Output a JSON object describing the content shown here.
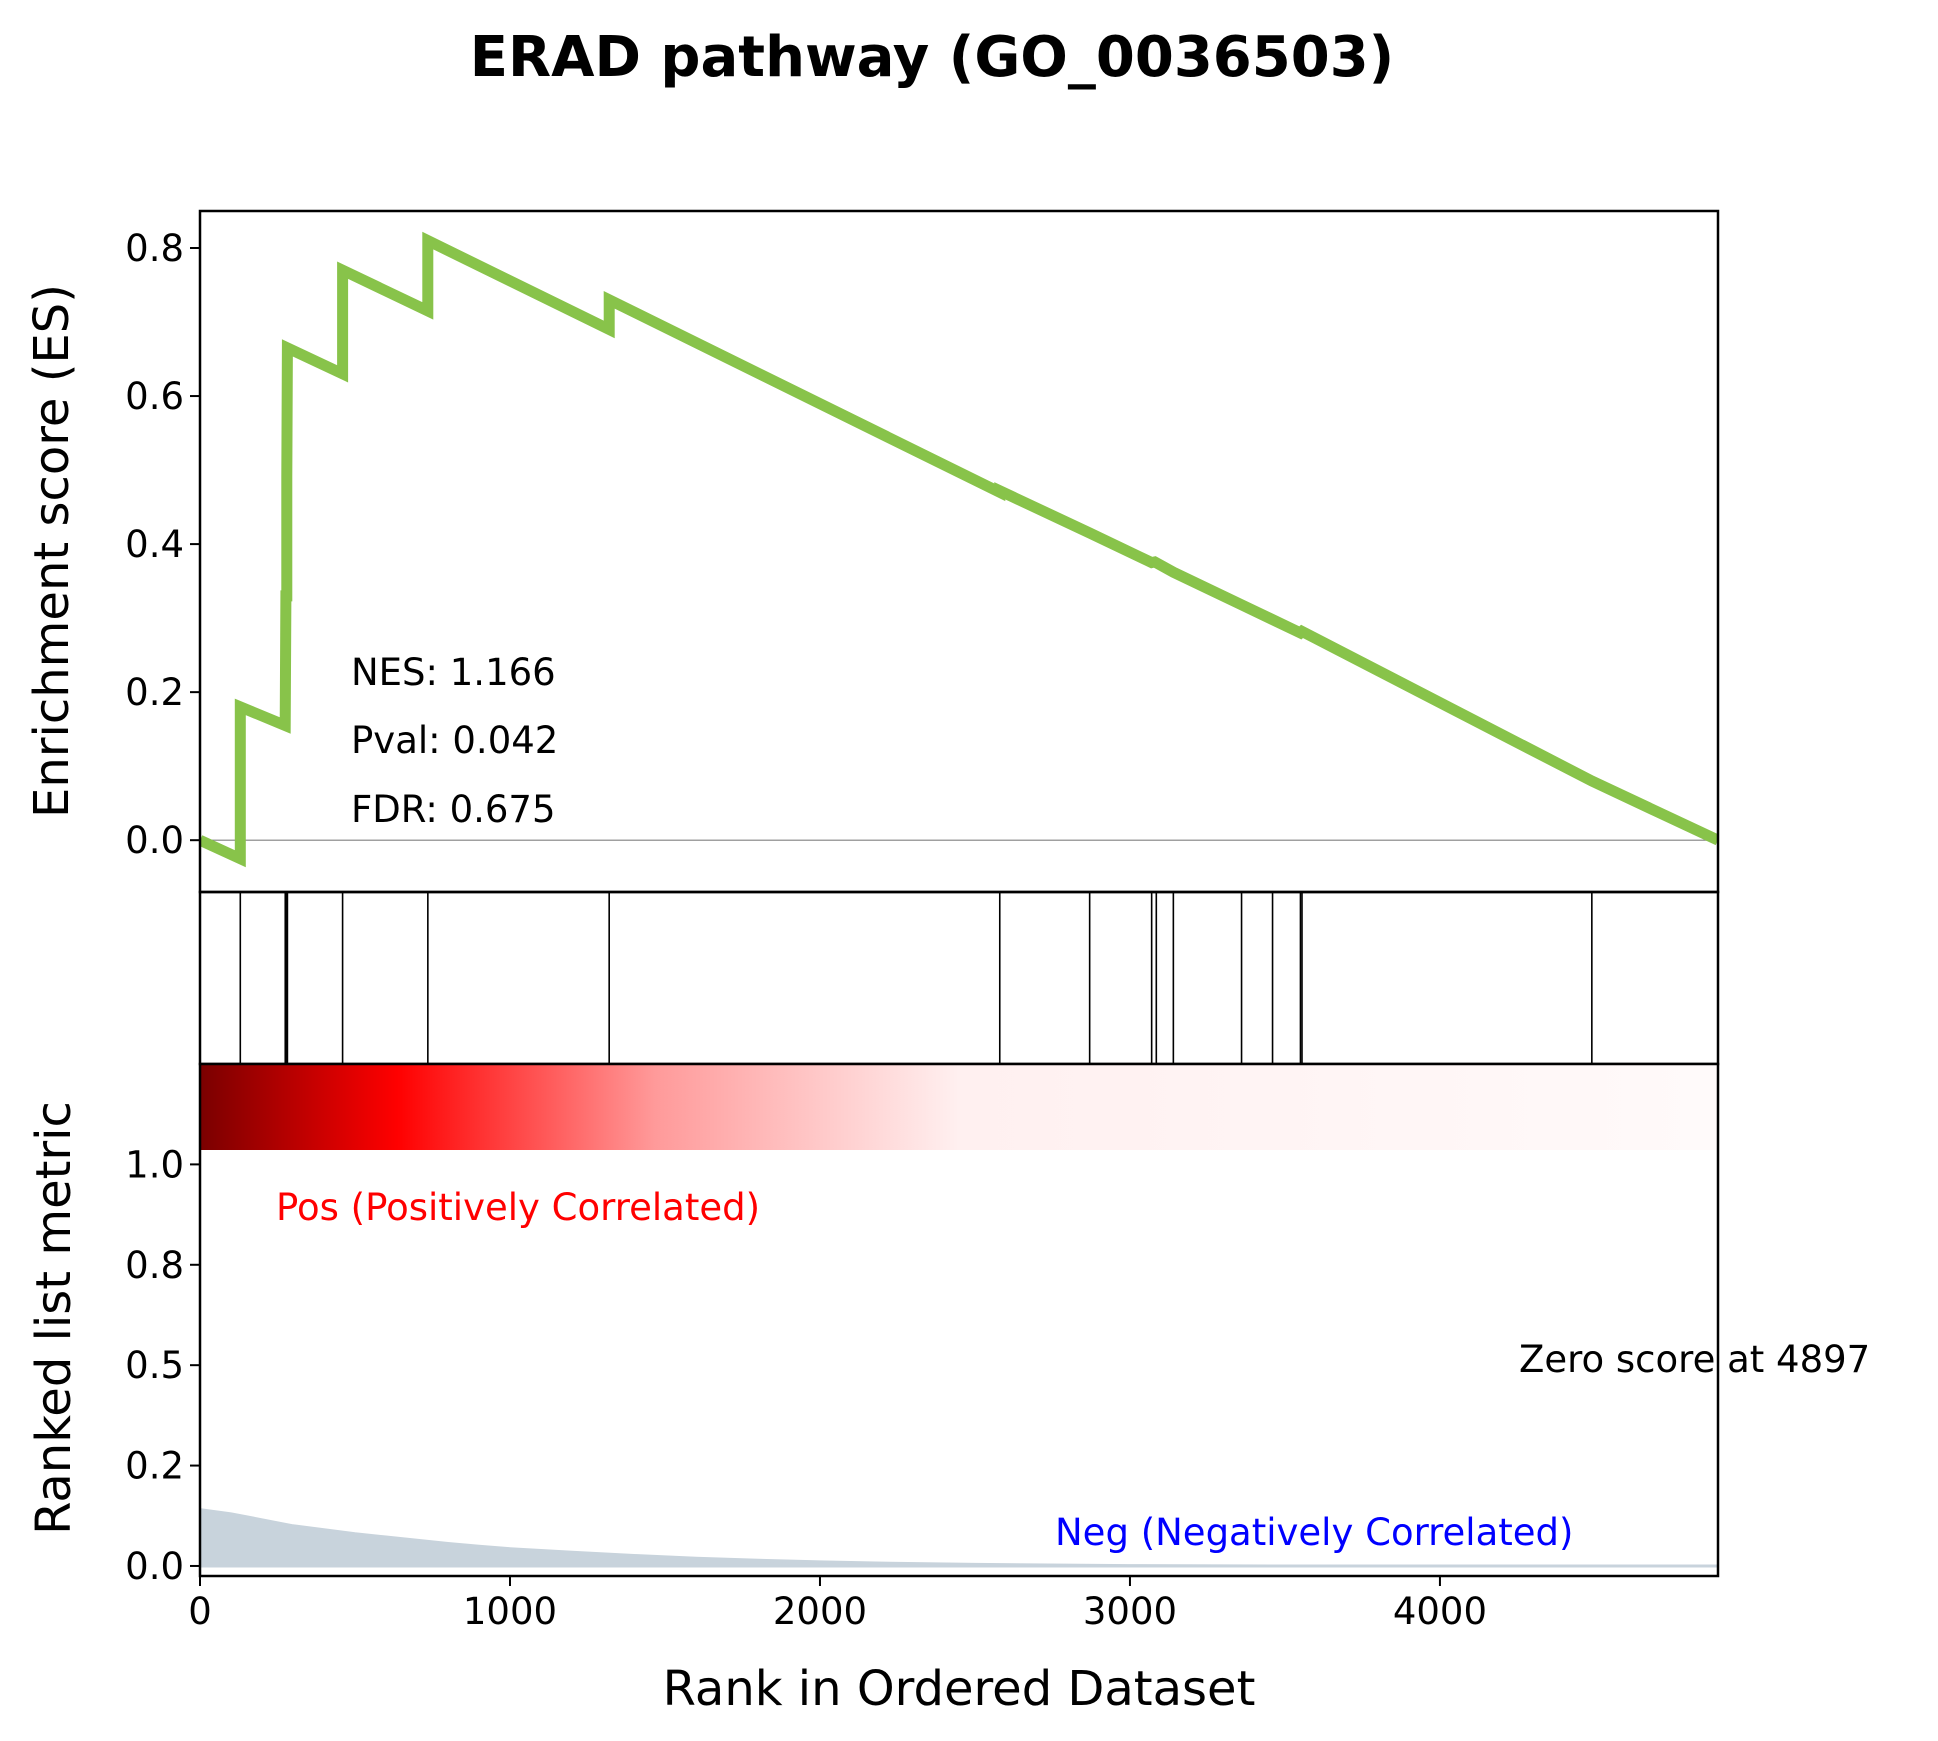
{
  "chart_data": {
    "type": "line",
    "title": "ERAD pathway (GO_0036503)",
    "xlabel": "Rank in Ordered Dataset",
    "ylabel_top": "Enrichment score (ES)",
    "ylabel_bottom": "Ranked list metric",
    "xlim": [
      0,
      4897
    ],
    "x_ticks": [
      0,
      1000,
      2000,
      3000,
      4000
    ],
    "x_tick_labels": [
      "0",
      "1000",
      "2000",
      "3000",
      "4000"
    ],
    "es_ylim": [
      -0.07,
      0.85
    ],
    "es_ticks": [
      0.0,
      0.2,
      0.4,
      0.6,
      0.8
    ],
    "es_tick_labels": [
      "0.0",
      "0.2",
      "0.4",
      "0.6",
      "0.8"
    ],
    "metric_ylim": [
      -0.025,
      1.25
    ],
    "metric_ticks": [
      0.0,
      0.25,
      0.5,
      0.75,
      1.0
    ],
    "metric_tick_labels": [
      "0.0",
      "0.2",
      "0.5",
      "0.8",
      "1.0"
    ],
    "stats": {
      "nes": "NES: 1.166",
      "pval": "Pval: 0.042",
      "fdr": "FDR: 0.675"
    },
    "pos_label": "Pos (Positively Correlated)",
    "neg_label": "Neg (Negatively Correlated)",
    "zero_score_label": "Zero score at 4897",
    "colors": {
      "es_line": "#88c34a",
      "hits": "#000000",
      "metric_fill": "#c8d3dc",
      "pos_text": "#ff0000",
      "neg_text": "#0000ff"
    },
    "es_series": {
      "name": "Enrichment score",
      "x": [
        0,
        130,
        130,
        275,
        277,
        280,
        280,
        282,
        460,
        460,
        735,
        735,
        1320,
        1320,
        2580,
        2580,
        2870,
        3070,
        3080,
        3140,
        3360,
        3460,
        3550,
        3555,
        4490,
        4897
      ],
      "y": [
        0.0,
        -0.025,
        0.18,
        0.155,
        0.33,
        0.33,
        0.49,
        0.665,
        0.63,
        0.77,
        0.715,
        0.81,
        0.69,
        0.73,
        0.47,
        0.472,
        0.415,
        0.375,
        0.376,
        0.362,
        0.318,
        0.298,
        0.28,
        0.282,
        0.08,
        0.0
      ]
    },
    "hit_positions": [
      130,
      275,
      278,
      282,
      460,
      735,
      1320,
      2580,
      2870,
      3070,
      3085,
      3140,
      3360,
      3460,
      3550,
      3555,
      4490
    ],
    "metric_series": {
      "x": [
        0,
        100,
        200,
        300,
        400,
        500,
        600,
        700,
        800,
        900,
        1000,
        1200,
        1400,
        1600,
        1800,
        2000,
        2200,
        2500,
        3000,
        3500,
        4000,
        4897
      ],
      "y": [
        0.14,
        0.13,
        0.115,
        0.1,
        0.09,
        0.08,
        0.072,
        0.064,
        0.056,
        0.049,
        0.043,
        0.034,
        0.026,
        0.019,
        0.014,
        0.01,
        0.007,
        0.004,
        0.001,
        0.0,
        0.0,
        0.0
      ]
    },
    "heatmap_gradient": [
      {
        "offset": 0.0,
        "color": "#7a0000"
      },
      {
        "offset": 0.13,
        "color": "#ff0000"
      },
      {
        "offset": 0.3,
        "color": "#ff9a9a"
      },
      {
        "offset": 0.5,
        "color": "#fff0f0"
      },
      {
        "offset": 1.0,
        "color": "#fffafa"
      }
    ]
  }
}
